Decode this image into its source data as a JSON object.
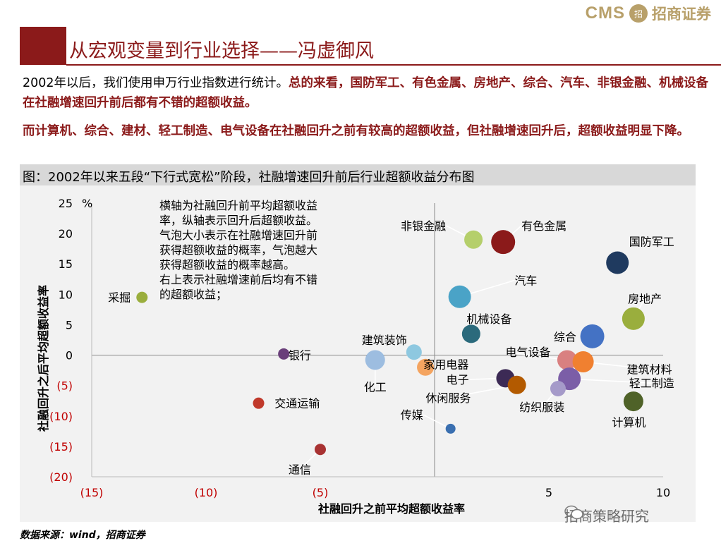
{
  "header": {
    "logo_cms": "CMS",
    "logo_cn": "招商证券",
    "title": "从宏观变量到行业选择——冯虚御风"
  },
  "paragraphs": {
    "p1_plain": "2002年以后，我们使用申万行业指数进行统计。",
    "p1_em": "总的来看，国防军工、有色金属、房地产、综合、汽车、非银金融、机械设备在社融增速回升前后都有不错的超额收益。",
    "p2_em": "而计算机、综合、建材、轻工制造、电气设备在社融回升之前有较高的超额收益，但社融增速回升后，超额收益明显下降。"
  },
  "figure_title": "图：2002年以来五段“下行式宽松”阶段，社融增速回升前后行业超额收益分布图",
  "source": "数据来源：wind，招商证券",
  "watermark": "招商策略研究",
  "chart_data": {
    "type": "scatter",
    "xlabel": "社融回升之前平均超额收益率",
    "ylabel": "社融回升之后平均超额收益率",
    "y_unit": "%",
    "xlim": [
      -15,
      10
    ],
    "ylim": [
      -20,
      25
    ],
    "x_ticks": [
      {
        "v": -15,
        "label": "(15)"
      },
      {
        "v": -10,
        "label": "(10)"
      },
      {
        "v": -5,
        "label": "(5)"
      },
      {
        "v": 5,
        "label": "5"
      },
      {
        "v": 10,
        "label": "10"
      }
    ],
    "y_ticks": [
      {
        "v": 25,
        "label": "25"
      },
      {
        "v": 20,
        "label": "20"
      },
      {
        "v": 15,
        "label": "15"
      },
      {
        "v": 10,
        "label": "10"
      },
      {
        "v": 5,
        "label": "5"
      },
      {
        "v": 0,
        "label": "0"
      },
      {
        "v": -5,
        "label": "(5)"
      },
      {
        "v": -10,
        "label": "(10)"
      },
      {
        "v": -15,
        "label": "(15)"
      },
      {
        "v": -20,
        "label": "(20)"
      }
    ],
    "annotation": [
      "横轴为社融回升前平均超额收益",
      "率，纵轴表示回升后超额收益。",
      "气泡大小表示在社融增速回升前",
      "获得超额收益的概率，气泡越大",
      "获得超额收益的概率越高。",
      "右上表示社融增速前后均有不错",
      "的超额收益；"
    ],
    "grid": false,
    "points": [
      {
        "name": "非银金融",
        "x": 1.7,
        "y": 19,
        "r": 13,
        "color": "#b5cf6b",
        "lx": 0.5,
        "ly": 21.3,
        "anchor": "end",
        "leader": true
      },
      {
        "name": "有色金属",
        "x": 3.0,
        "y": 18.6,
        "r": 17,
        "color": "#8b1a1a",
        "lx": 3.8,
        "ly": 21.3,
        "anchor": "start",
        "leader": true
      },
      {
        "name": "国防军工",
        "x": 8.0,
        "y": 15.2,
        "r": 16,
        "color": "#1f3a5f",
        "lx": 9.5,
        "ly": 18.7,
        "anchor": "middle",
        "leader": false
      },
      {
        "name": "汽车",
        "x": 1.1,
        "y": 9.6,
        "r": 16,
        "color": "#4aa3c7",
        "lx": 3.5,
        "ly": 12.3,
        "anchor": "start",
        "leader": true
      },
      {
        "name": "房地产",
        "x": 8.7,
        "y": 6.0,
        "r": 16,
        "color": "#9aae3d",
        "lx": 9.2,
        "ly": 9.3,
        "anchor": "middle",
        "leader": true
      },
      {
        "name": "机械设备",
        "x": 1.6,
        "y": 3.5,
        "r": 13,
        "color": "#2b6a7c",
        "lx": 1.4,
        "ly": 6.0,
        "anchor": "start",
        "leader": false
      },
      {
        "name": "综合",
        "x": 6.9,
        "y": 3.1,
        "r": 17,
        "color": "#4472c4",
        "lx": 6.2,
        "ly": 3.0,
        "anchor": "end",
        "leader": false
      },
      {
        "name": "采掘",
        "x": -12.8,
        "y": 9.5,
        "r": 8,
        "color": "#9aae3d",
        "lx": -13.3,
        "ly": 9.5,
        "anchor": "end",
        "leader": false
      },
      {
        "name": "建筑装饰",
        "x": -0.9,
        "y": 0.5,
        "r": 11,
        "color": "#8ec8e0",
        "lx": -2.2,
        "ly": 2.5,
        "anchor": "middle",
        "leader": false
      },
      {
        "name": "银行",
        "x": -6.6,
        "y": 0.2,
        "r": 8,
        "color": "#6a3f7a",
        "lx": -5.9,
        "ly": 0.0,
        "anchor": "middle",
        "leader": true
      },
      {
        "name": "化工",
        "x": -2.6,
        "y": -0.8,
        "r": 14,
        "color": "#9dbde0",
        "lx": -2.6,
        "ly": -5.2,
        "anchor": "middle",
        "leader": true
      },
      {
        "name": "家用电器",
        "x": -0.4,
        "y": -2.0,
        "r": 12,
        "color": "#f4a460",
        "lx": 0.5,
        "ly": -1.5,
        "anchor": "middle",
        "leader": false
      },
      {
        "name": "电气设备",
        "x": 5.8,
        "y": -0.8,
        "r": 14,
        "color": "#d98080",
        "lx": 3.1,
        "ly": 0.5,
        "anchor": "start",
        "leader": true
      },
      {
        "name": "建筑材料",
        "x": 6.5,
        "y": -1.1,
        "r": 15,
        "color": "#f08030",
        "lx": 9.4,
        "ly": -2.3,
        "anchor": "middle",
        "leader": true
      },
      {
        "name": "电子",
        "x": 3.1,
        "y": -3.8,
        "r": 13,
        "color": "#3c2a55",
        "lx": 1.5,
        "ly": -4.0,
        "anchor": "end",
        "leader": true
      },
      {
        "name": "休闲服务",
        "x": 3.6,
        "y": -4.9,
        "r": 13,
        "color": "#b35a00",
        "lx": 0.6,
        "ly": -7.0,
        "anchor": "middle",
        "leader": true
      },
      {
        "name": "轻工制造",
        "x": 5.9,
        "y": -3.9,
        "r": 16,
        "color": "#7b5ea7",
        "lx": 9.5,
        "ly": -4.6,
        "anchor": "middle",
        "leader": true
      },
      {
        "name": "纺织服装",
        "x": 5.4,
        "y": -5.5,
        "r": 11,
        "color": "#a59ac9",
        "lx": 4.7,
        "ly": -8.5,
        "anchor": "middle",
        "leader": true
      },
      {
        "name": "计算机",
        "x": 8.7,
        "y": -7.6,
        "r": 14,
        "color": "#4f6228",
        "lx": 8.5,
        "ly": -11.0,
        "anchor": "middle",
        "leader": true
      },
      {
        "name": "交通运输",
        "x": -7.7,
        "y": -7.9,
        "r": 8,
        "color": "#c0392b",
        "lx": -7.0,
        "ly": -7.9,
        "anchor": "start",
        "leader": false
      },
      {
        "name": "传媒",
        "x": 0.7,
        "y": -12.1,
        "r": 7,
        "color": "#3a6fb0",
        "lx": -0.5,
        "ly": -9.8,
        "anchor": "end",
        "leader": true
      },
      {
        "name": "通信",
        "x": -5.0,
        "y": -15.5,
        "r": 8,
        "color": "#a83232",
        "lx": -5.9,
        "ly": -18.8,
        "anchor": "middle",
        "leader": true
      }
    ]
  }
}
